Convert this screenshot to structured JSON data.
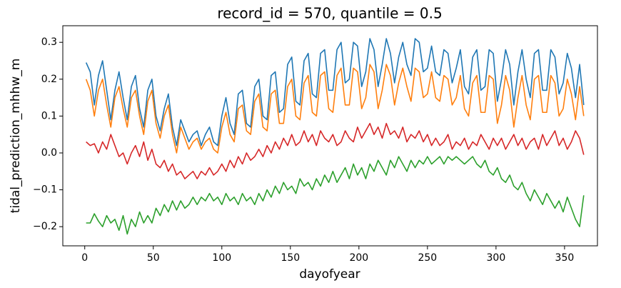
{
  "chart_data": {
    "type": "line",
    "title": "record_id = 570, quantile = 0.5",
    "x_label": "dayofyear",
    "y_label": "tidal_prediction_mhhw_m",
    "xlim": [
      -16,
      374
    ],
    "ylim": [
      -0.252,
      0.345
    ],
    "xticks": [
      0,
      50,
      100,
      150,
      200,
      250,
      300,
      350
    ],
    "yticks": [
      {
        "value": -0.2,
        "label": "−0.2"
      },
      {
        "value": -0.1,
        "label": "−0.1"
      },
      {
        "value": 0.0,
        "label": "0.0"
      },
      0.1,
      0.2,
      0.3
    ],
    "x": [
      1,
      4,
      7,
      10,
      13,
      16,
      19,
      22,
      25,
      28,
      31,
      34,
      37,
      40,
      43,
      46,
      49,
      52,
      55,
      58,
      61,
      64,
      67,
      70,
      73,
      76,
      79,
      82,
      85,
      88,
      91,
      94,
      97,
      100,
      103,
      106,
      109,
      112,
      115,
      118,
      121,
      124,
      127,
      130,
      133,
      136,
      139,
      142,
      145,
      148,
      151,
      154,
      157,
      160,
      163,
      166,
      169,
      172,
      175,
      178,
      181,
      184,
      187,
      190,
      193,
      196,
      199,
      202,
      205,
      208,
      211,
      214,
      217,
      220,
      223,
      226,
      229,
      232,
      235,
      238,
      241,
      244,
      247,
      250,
      253,
      256,
      259,
      262,
      265,
      268,
      271,
      274,
      277,
      280,
      283,
      286,
      289,
      292,
      295,
      298,
      301,
      304,
      307,
      310,
      313,
      316,
      319,
      322,
      325,
      328,
      331,
      334,
      337,
      340,
      343,
      346,
      349,
      352,
      355,
      358,
      361,
      364
    ],
    "series": [
      {
        "color": "#1f77b4",
        "values": [
          0.245,
          0.22,
          0.13,
          0.21,
          0.25,
          0.17,
          0.09,
          0.17,
          0.22,
          0.15,
          0.09,
          0.18,
          0.21,
          0.12,
          0.07,
          0.17,
          0.2,
          0.1,
          0.06,
          0.12,
          0.16,
          0.07,
          0.02,
          0.09,
          0.06,
          0.03,
          0.05,
          0.06,
          0.02,
          0.05,
          0.07,
          0.03,
          0.02,
          0.1,
          0.15,
          0.08,
          0.05,
          0.16,
          0.17,
          0.08,
          0.07,
          0.18,
          0.2,
          0.1,
          0.09,
          0.21,
          0.22,
          0.11,
          0.12,
          0.24,
          0.26,
          0.14,
          0.13,
          0.25,
          0.27,
          0.16,
          0.15,
          0.27,
          0.28,
          0.17,
          0.17,
          0.28,
          0.3,
          0.19,
          0.2,
          0.3,
          0.29,
          0.18,
          0.22,
          0.31,
          0.28,
          0.18,
          0.24,
          0.31,
          0.27,
          0.19,
          0.26,
          0.3,
          0.24,
          0.21,
          0.31,
          0.3,
          0.22,
          0.23,
          0.29,
          0.22,
          0.21,
          0.28,
          0.27,
          0.19,
          0.23,
          0.28,
          0.18,
          0.16,
          0.26,
          0.28,
          0.17,
          0.18,
          0.28,
          0.27,
          0.14,
          0.2,
          0.28,
          0.24,
          0.13,
          0.22,
          0.28,
          0.2,
          0.15,
          0.27,
          0.28,
          0.17,
          0.17,
          0.28,
          0.26,
          0.16,
          0.19,
          0.27,
          0.23,
          0.15,
          0.24,
          0.13
        ]
      },
      {
        "color": "#ff7f0e",
        "values": [
          0.2,
          0.17,
          0.1,
          0.17,
          0.2,
          0.13,
          0.07,
          0.15,
          0.18,
          0.12,
          0.07,
          0.15,
          0.17,
          0.1,
          0.05,
          0.14,
          0.17,
          0.08,
          0.04,
          0.1,
          0.13,
          0.05,
          0.0,
          0.07,
          0.04,
          0.01,
          0.03,
          0.04,
          0.01,
          0.03,
          0.04,
          0.01,
          0.0,
          0.07,
          0.11,
          0.05,
          0.03,
          0.12,
          0.13,
          0.06,
          0.05,
          0.14,
          0.16,
          0.07,
          0.06,
          0.16,
          0.17,
          0.08,
          0.08,
          0.18,
          0.2,
          0.1,
          0.09,
          0.19,
          0.21,
          0.11,
          0.1,
          0.21,
          0.22,
          0.12,
          0.11,
          0.21,
          0.23,
          0.13,
          0.13,
          0.23,
          0.22,
          0.12,
          0.15,
          0.24,
          0.22,
          0.12,
          0.17,
          0.24,
          0.21,
          0.13,
          0.19,
          0.23,
          0.18,
          0.14,
          0.23,
          0.22,
          0.15,
          0.16,
          0.22,
          0.15,
          0.14,
          0.21,
          0.2,
          0.13,
          0.15,
          0.21,
          0.12,
          0.1,
          0.19,
          0.21,
          0.11,
          0.11,
          0.21,
          0.2,
          0.08,
          0.13,
          0.21,
          0.17,
          0.07,
          0.15,
          0.21,
          0.13,
          0.09,
          0.2,
          0.21,
          0.11,
          0.11,
          0.21,
          0.19,
          0.1,
          0.12,
          0.2,
          0.16,
          0.09,
          0.18,
          0.1
        ]
      },
      {
        "color": "#d62728",
        "values": [
          0.03,
          0.02,
          0.025,
          0.0,
          0.03,
          0.01,
          0.05,
          0.02,
          -0.01,
          0.0,
          -0.03,
          0.0,
          0.02,
          -0.01,
          0.03,
          -0.02,
          0.01,
          -0.03,
          -0.04,
          -0.02,
          -0.05,
          -0.03,
          -0.06,
          -0.05,
          -0.07,
          -0.06,
          -0.05,
          -0.07,
          -0.05,
          -0.06,
          -0.04,
          -0.06,
          -0.05,
          -0.03,
          -0.05,
          -0.02,
          -0.04,
          -0.01,
          -0.03,
          0.0,
          -0.02,
          -0.01,
          0.01,
          -0.01,
          0.02,
          0.0,
          0.03,
          0.01,
          0.04,
          0.02,
          0.05,
          0.02,
          0.03,
          0.06,
          0.03,
          0.05,
          0.02,
          0.06,
          0.04,
          0.03,
          0.05,
          0.02,
          0.03,
          0.06,
          0.04,
          0.03,
          0.07,
          0.04,
          0.06,
          0.08,
          0.05,
          0.07,
          0.04,
          0.08,
          0.05,
          0.06,
          0.04,
          0.07,
          0.03,
          0.05,
          0.04,
          0.06,
          0.03,
          0.05,
          0.02,
          0.04,
          0.02,
          0.03,
          0.05,
          0.01,
          0.03,
          0.02,
          0.04,
          0.01,
          0.03,
          0.02,
          0.05,
          0.03,
          0.01,
          0.04,
          0.02,
          0.04,
          0.01,
          0.03,
          0.05,
          0.02,
          0.04,
          0.01,
          0.03,
          0.04,
          0.01,
          0.05,
          0.02,
          0.04,
          0.06,
          0.02,
          0.04,
          0.01,
          0.03,
          0.06,
          0.04,
          -0.005
        ]
      },
      {
        "color": "#2ca02c",
        "values": [
          -0.19,
          -0.19,
          -0.165,
          -0.185,
          -0.2,
          -0.17,
          -0.19,
          -0.18,
          -0.21,
          -0.17,
          -0.22,
          -0.18,
          -0.2,
          -0.16,
          -0.19,
          -0.17,
          -0.19,
          -0.15,
          -0.17,
          -0.14,
          -0.16,
          -0.13,
          -0.155,
          -0.13,
          -0.15,
          -0.14,
          -0.12,
          -0.14,
          -0.12,
          -0.13,
          -0.11,
          -0.13,
          -0.12,
          -0.14,
          -0.11,
          -0.13,
          -0.12,
          -0.14,
          -0.11,
          -0.13,
          -0.12,
          -0.14,
          -0.11,
          -0.13,
          -0.1,
          -0.12,
          -0.09,
          -0.11,
          -0.08,
          -0.1,
          -0.09,
          -0.11,
          -0.07,
          -0.09,
          -0.08,
          -0.1,
          -0.07,
          -0.09,
          -0.06,
          -0.08,
          -0.05,
          -0.08,
          -0.06,
          -0.04,
          -0.07,
          -0.03,
          -0.06,
          -0.04,
          -0.07,
          -0.03,
          -0.05,
          -0.02,
          -0.04,
          -0.06,
          -0.02,
          -0.04,
          -0.01,
          -0.03,
          -0.05,
          -0.02,
          -0.04,
          -0.02,
          -0.03,
          -0.01,
          -0.03,
          -0.02,
          -0.01,
          -0.03,
          -0.01,
          -0.02,
          -0.01,
          -0.02,
          -0.03,
          -0.02,
          -0.01,
          -0.03,
          -0.04,
          -0.02,
          -0.05,
          -0.06,
          -0.04,
          -0.07,
          -0.08,
          -0.06,
          -0.09,
          -0.1,
          -0.08,
          -0.11,
          -0.13,
          -0.1,
          -0.12,
          -0.14,
          -0.11,
          -0.13,
          -0.15,
          -0.13,
          -0.16,
          -0.12,
          -0.15,
          -0.18,
          -0.2,
          -0.115
        ]
      }
    ]
  }
}
